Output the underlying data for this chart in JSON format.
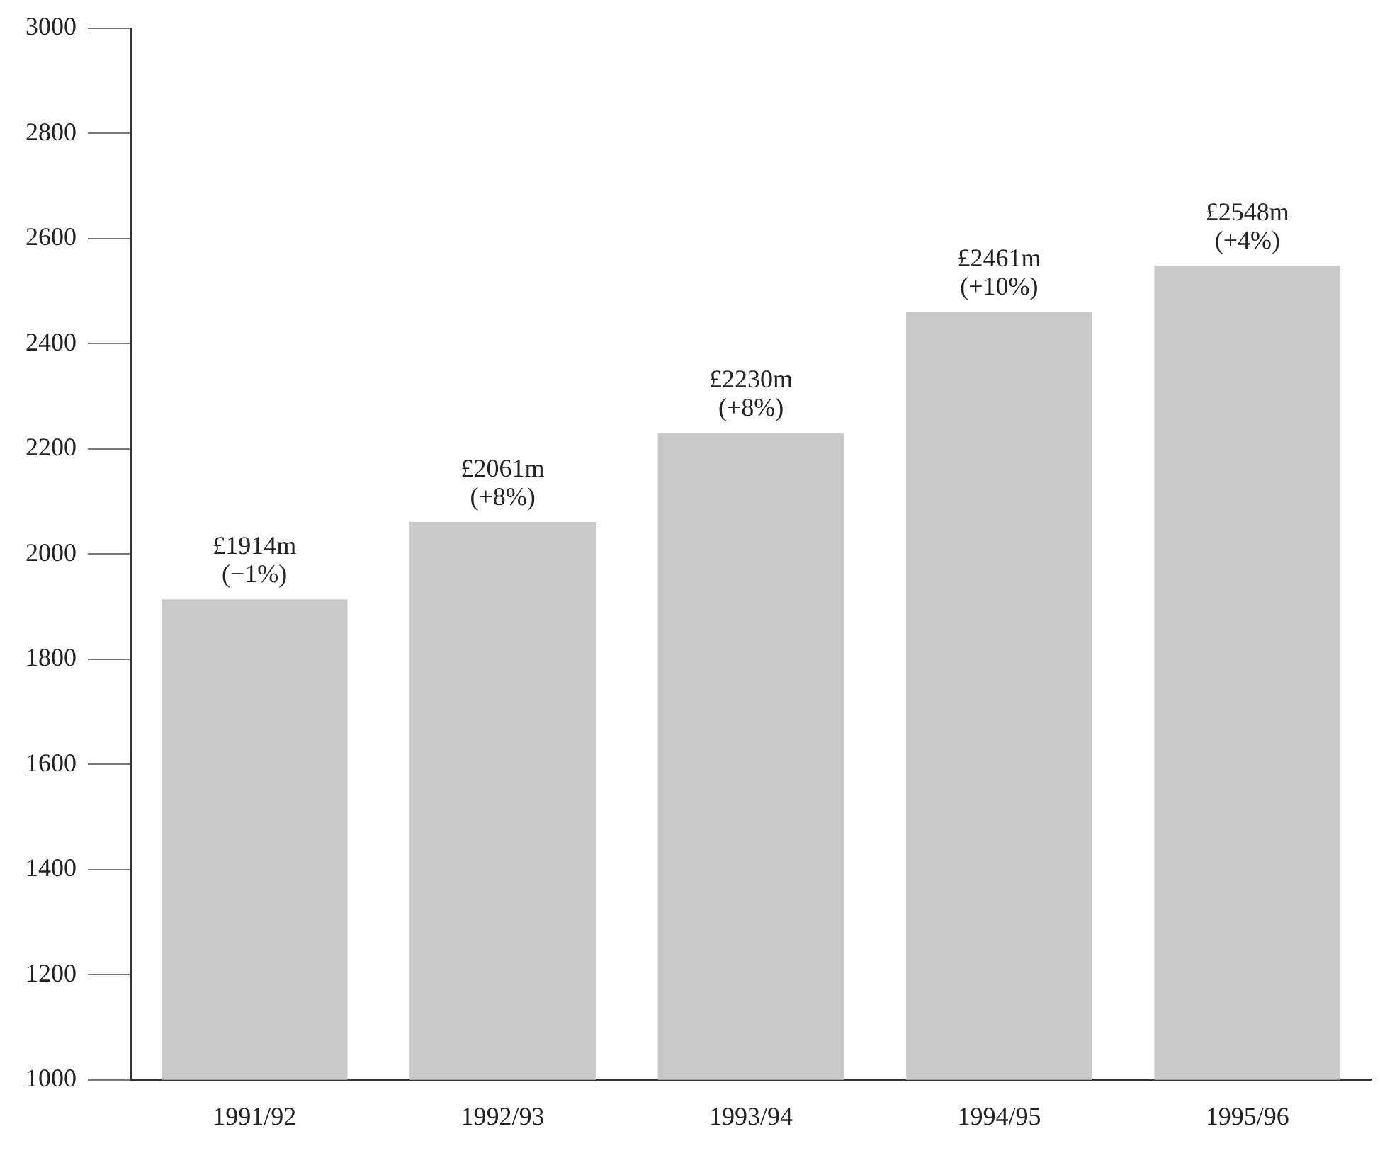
{
  "chart_data": {
    "type": "bar",
    "categories": [
      "1991/92",
      "1992/93",
      "1993/94",
      "1994/95",
      "1995/96"
    ],
    "values": [
      1914,
      2061,
      2230,
      2461,
      2548
    ],
    "value_labels": [
      "£1914m",
      "£2061m",
      "£2230m",
      "£2461m",
      "£2548m"
    ],
    "annotations": [
      {
        "text": "(−1%)",
        "x": "1991/92",
        "y": 1914
      },
      {
        "text": "(+8%)",
        "x": "1992/93",
        "y": 2061
      },
      {
        "text": "(+8%)",
        "x": "1993/94",
        "y": 2230
      },
      {
        "text": "(+10%)",
        "x": "1994/95",
        "y": 2461
      },
      {
        "text": "(+4%)",
        "x": "1995/96",
        "y": 2548
      }
    ],
    "color": "#c9c9c9",
    "ylim": [
      1000,
      3000
    ],
    "yticks": [
      1000,
      1200,
      1400,
      1600,
      1800,
      2000,
      2200,
      2400,
      2600,
      2800,
      3000
    ],
    "grid": false,
    "legend": false
  }
}
